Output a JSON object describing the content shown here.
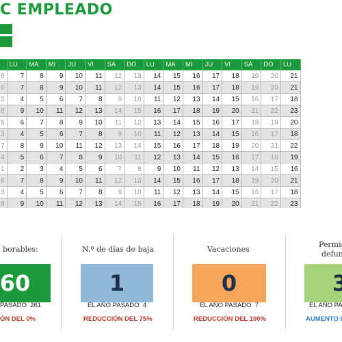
{
  "title": "C EMPLEADO",
  "calendar": {
    "headers": [
      "DO",
      "LU",
      "MA",
      "MI",
      "JU",
      "VI",
      "SÁ",
      "DO",
      "LU",
      "MA",
      "MI",
      "JU",
      "VI",
      "SÁ",
      "DO",
      "LU"
    ],
    "rows": [
      [
        "6",
        "7",
        "8",
        "9",
        "10",
        "11",
        "12",
        "13",
        "14",
        "15",
        "16",
        "17",
        "18",
        "19",
        "20",
        "21"
      ],
      [
        "6",
        "7",
        "8",
        "9",
        "10",
        "11",
        "12",
        "13",
        "14",
        "15",
        "16",
        "17",
        "18",
        "19",
        "20",
        "21"
      ],
      [
        "3",
        "4",
        "5",
        "6",
        "7",
        "8",
        "9",
        "10",
        "11",
        "12",
        "13",
        "14",
        "15",
        "16",
        "17",
        "18"
      ],
      [
        "8",
        "9",
        "10",
        "11",
        "12",
        "13",
        "14",
        "15",
        "16",
        "17",
        "18",
        "19",
        "20",
        "21",
        "22",
        "23"
      ],
      [
        "5",
        "6",
        "7",
        "8",
        "9",
        "10",
        "11",
        "12",
        "13",
        "14",
        "15",
        "16",
        "17",
        "18",
        "19",
        "20"
      ],
      [
        "3",
        "4",
        "5",
        "6",
        "7",
        "8",
        "9",
        "10",
        "11",
        "12",
        "13",
        "14",
        "15",
        "16",
        "17",
        "18"
      ],
      [
        "7",
        "8",
        "9",
        "10",
        "11",
        "12",
        "13",
        "14",
        "15",
        "16",
        "17",
        "18",
        "19",
        "20",
        "21",
        "22"
      ],
      [
        "4",
        "5",
        "6",
        "7",
        "8",
        "9",
        "10",
        "11",
        "12",
        "13",
        "14",
        "15",
        "16",
        "17",
        "18",
        "19"
      ],
      [
        "1",
        "2",
        "3",
        "4",
        "5",
        "6",
        "7",
        "8",
        "9",
        "10",
        "11",
        "12",
        "13",
        "14",
        "15",
        "16"
      ],
      [
        "6",
        "7",
        "8",
        "9",
        "10",
        "11",
        "12",
        "13",
        "14",
        "15",
        "16",
        "17",
        "18",
        "19",
        "20",
        "21"
      ],
      [
        "3",
        "4",
        "5",
        "6",
        "7",
        "8",
        "9",
        "10",
        "11",
        "12",
        "13",
        "14",
        "15",
        "16",
        "17",
        "18"
      ],
      [
        "8",
        "9",
        "10",
        "11",
        "12",
        "13",
        "14",
        "15",
        "16",
        "17",
        "18",
        "19",
        "20",
        "21",
        "22",
        "23"
      ]
    ]
  },
  "panels": [
    {
      "title": "borables:",
      "value": "60",
      "last_label": "PASADO",
      "last_value": "261",
      "change": "ÓN DEL 0%",
      "color": "#1a9a3a",
      "change_color": "#c0392b"
    },
    {
      "title": "N.º de días de baja",
      "value": "1",
      "last_label": "EL AÑO PASADO",
      "last_value": "4",
      "change": "REDUCCIÓN DEL 75%",
      "color": "#8fb9d9",
      "change_color": "#c0392b"
    },
    {
      "title": "Vacaciones",
      "value": "0",
      "last_label": "EL AÑO PASADO",
      "last_value": "7",
      "change": "REDUCCIÓN DEL 100%",
      "color": "#f5a65b",
      "change_color": "#c0392b"
    },
    {
      "title": "Permis",
      "title2": "defun",
      "value": "3",
      "last_label": "EL AÑO PA",
      "last_value": "",
      "change": "AUMENTO D",
      "color": "#a6d27a",
      "change_color": "#2a7fc1"
    }
  ]
}
